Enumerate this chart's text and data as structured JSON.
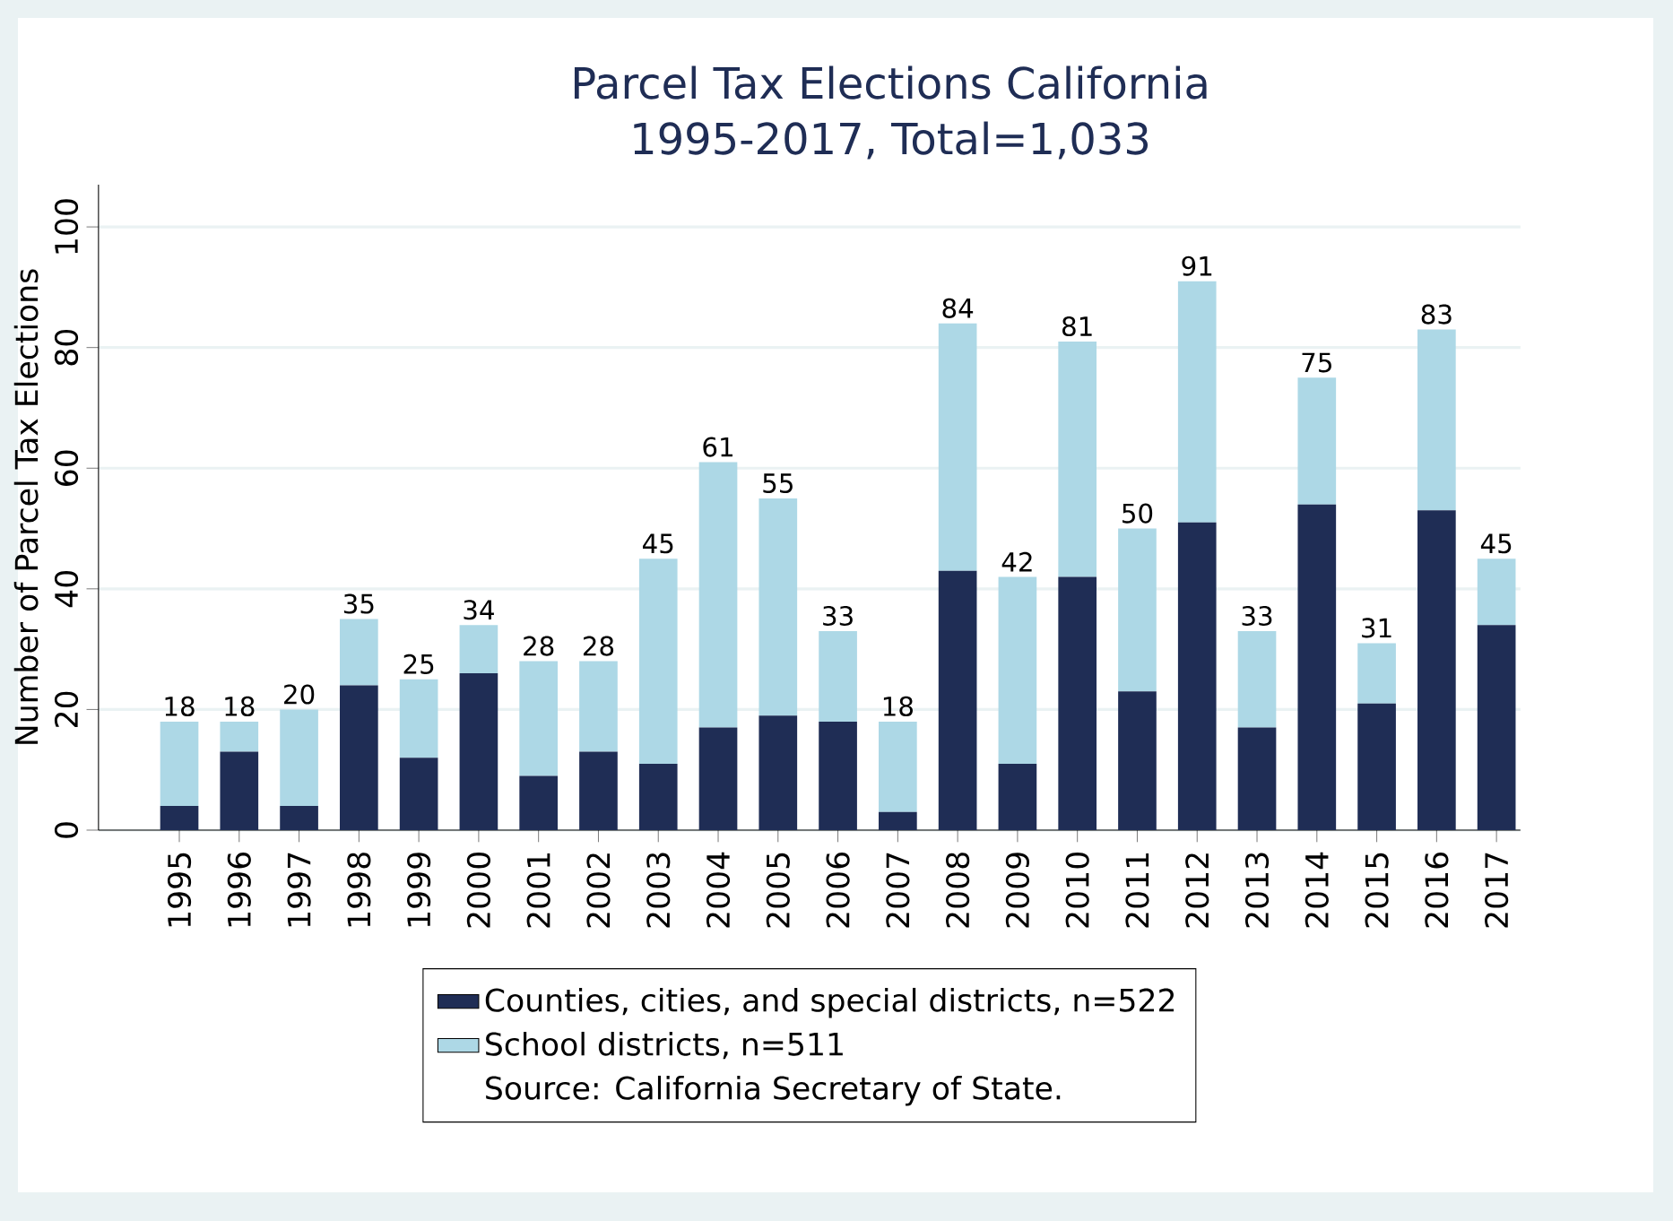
{
  "chart_data": {
    "type": "bar",
    "title": "Parcel Tax Elections California",
    "subtitle": "1995-2017, Total=1,033",
    "ylabel": "Number of Parcel Tax Elections",
    "categories": [
      "1995",
      "1996",
      "1997",
      "1998",
      "1999",
      "2000",
      "2001",
      "2002",
      "2003",
      "2004",
      "2005",
      "2006",
      "2007",
      "2008",
      "2009",
      "2010",
      "2011",
      "2012",
      "2013",
      "2014",
      "2015",
      "2016",
      "2017"
    ],
    "series": [
      {
        "name": "Counties, cities, and special districts, n=522",
        "color": "#1f2d55",
        "values": [
          4,
          13,
          4,
          24,
          12,
          26,
          9,
          13,
          11,
          17,
          19,
          18,
          3,
          43,
          11,
          42,
          23,
          51,
          17,
          54,
          21,
          53,
          34
        ]
      },
      {
        "name": "School districts, n=511",
        "color": "#add8e6",
        "values": [
          14,
          5,
          16,
          11,
          13,
          8,
          19,
          15,
          34,
          44,
          36,
          15,
          15,
          41,
          31,
          39,
          27,
          40,
          16,
          21,
          10,
          30,
          11
        ]
      }
    ],
    "stacked": true,
    "totals": [
      "18",
      "18",
      "20",
      "35",
      "25",
      "34",
      "28",
      "28",
      "45",
      "61",
      "55",
      "33",
      "18",
      "84",
      "42",
      "81",
      "50",
      "91",
      "33",
      "75",
      "31",
      "83",
      "45"
    ],
    "ylim": [
      0,
      107
    ],
    "yticks": [
      0,
      20,
      40,
      60,
      80,
      100
    ],
    "grid": "y",
    "legend": "bottom",
    "annotations": [
      "Source: California Secretary of State."
    ]
  }
}
